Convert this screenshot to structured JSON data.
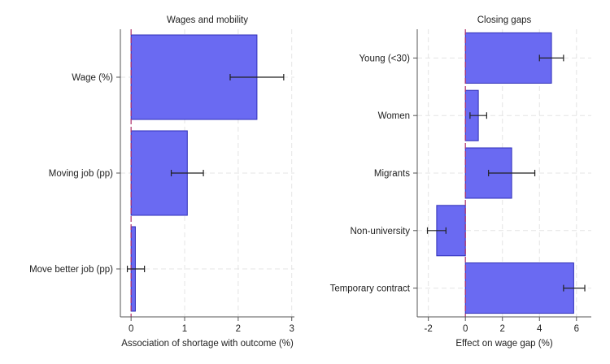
{
  "chart_data": [
    {
      "type": "bar",
      "orientation": "horizontal",
      "title": "Wages and mobility",
      "xlabel": "Association of shortage with outcome (%)",
      "ylabel": "",
      "xlim": [
        -0.2,
        3.05
      ],
      "xticks": [
        0,
        1,
        2,
        3
      ],
      "tick_labels": [
        "0",
        "1",
        "2",
        "3"
      ],
      "grid": true,
      "categories": [
        "Wage (%)",
        "Moving job (pp)",
        "Move better job (pp)"
      ],
      "values": [
        2.35,
        1.05,
        0.08
      ],
      "ci_low": [
        1.85,
        0.75,
        -0.07
      ],
      "ci_high": [
        2.85,
        1.35,
        0.25
      ],
      "colors": {
        "bar_fill": "#6a6af2",
        "bar_stroke": "#2e2eb8",
        "zero_line": "#b0306a",
        "grid": "#e4e4e4",
        "axis": "#555555"
      }
    },
    {
      "type": "bar",
      "orientation": "horizontal",
      "title": "Closing gaps",
      "xlabel": "Effect on wage gap (%)",
      "ylabel": "",
      "xlim": [
        -2.6,
        6.8
      ],
      "xticks": [
        -2,
        0,
        2,
        4,
        6
      ],
      "tick_labels": [
        "-2",
        "0",
        "2",
        "4",
        "6"
      ],
      "grid": true,
      "categories": [
        "Young (<30)",
        "Women",
        "Migrants",
        "Non-university",
        "Temporary contract"
      ],
      "values": [
        4.65,
        0.7,
        2.5,
        -1.55,
        5.85
      ],
      "ci_low": [
        4.0,
        0.25,
        1.25,
        -2.05,
        5.3
      ],
      "ci_high": [
        5.3,
        1.15,
        3.75,
        -1.05,
        6.45
      ],
      "colors": {
        "bar_fill": "#6a6af2",
        "bar_stroke": "#2e2eb8",
        "zero_line": "#b0306a",
        "grid": "#e4e4e4",
        "axis": "#555555"
      }
    }
  ]
}
